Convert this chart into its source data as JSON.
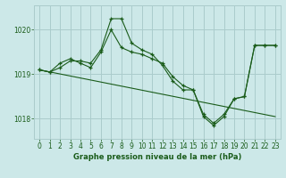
{
  "title": "Graphe pression niveau de la mer (hPa)",
  "background_color": "#cce8e8",
  "grid_color": "#aacccc",
  "line_color": "#1a5c1a",
  "xlim": [
    -0.5,
    23.5
  ],
  "ylim": [
    1017.55,
    1020.55
  ],
  "yticks": [
    1018,
    1019,
    1020
  ],
  "xticks": [
    0,
    1,
    2,
    3,
    4,
    5,
    6,
    7,
    8,
    9,
    10,
    11,
    12,
    13,
    14,
    15,
    16,
    17,
    18,
    19,
    20,
    21,
    22,
    23
  ],
  "series": [
    {
      "x": [
        0,
        1,
        2,
        3,
        4,
        5,
        6,
        7,
        8,
        9,
        10,
        11,
        12,
        13,
        14,
        15,
        16,
        17,
        18,
        19,
        20,
        21,
        22,
        23
      ],
      "y": [
        1019.1,
        1019.05,
        1019.15,
        1019.3,
        1019.3,
        1019.25,
        1019.55,
        1020.25,
        1020.25,
        1019.7,
        1019.55,
        1019.45,
        1019.2,
        1018.85,
        1018.65,
        1018.65,
        1018.05,
        1017.85,
        1018.05,
        1018.45,
        1018.5,
        1019.65,
        1019.65,
        1019.65
      ]
    },
    {
      "x": [
        0,
        1,
        2,
        3,
        4,
        5,
        6,
        7,
        8,
        9,
        10,
        11,
        12,
        13,
        14,
        15,
        16,
        17,
        18,
        19,
        20,
        21,
        22,
        23
      ],
      "y": [
        1019.1,
        1019.05,
        1019.25,
        1019.35,
        1019.25,
        1019.15,
        1019.5,
        1020.0,
        1019.6,
        1019.5,
        1019.45,
        1019.35,
        1019.25,
        1018.95,
        1018.75,
        1018.65,
        1018.1,
        1017.9,
        1018.1,
        1018.45,
        1018.5,
        1019.65,
        1019.65,
        1019.65
      ]
    },
    {
      "x": [
        0,
        23
      ],
      "y": [
        1019.1,
        1018.05
      ]
    }
  ]
}
